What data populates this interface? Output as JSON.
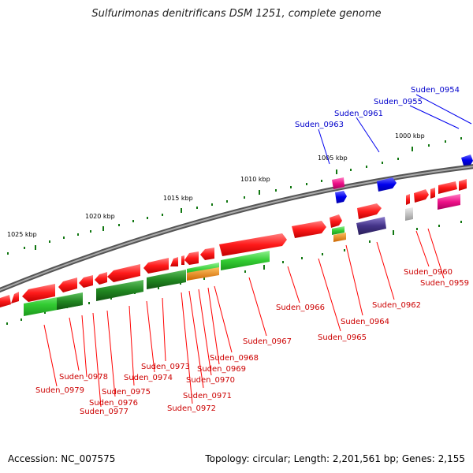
{
  "title": "Sulfurimonas denitrificans DSM 1251, complete genome",
  "footer": {
    "accession": "Accession: NC_007575",
    "summary": "Topology: circular; Length: 2,201,561 bp; Genes: 2,155"
  },
  "colors": {
    "forward_gene": "#ff1a1a",
    "reverse_gene": "#ff1a1a",
    "highlight_gene": "#0000ee",
    "rna_gene": "#ee1188",
    "pseudo_gene": "#aaaaaa",
    "cog_green": "#33cc33",
    "cog_dark_green": "#228822",
    "cog_orange": "#ee8800",
    "cog_purple": "#443388",
    "tick": "#117711",
    "backbone": "#777777"
  },
  "kbp_ticks": [
    "1000 kbp",
    "1005 kbp",
    "1010 kbp",
    "1015 kbp",
    "1020 kbp",
    "1025 kbp"
  ],
  "blue_labels": [
    "Suden_0954",
    "Suden_0955",
    "Suden_0961",
    "Suden_0963"
  ],
  "red_labels": [
    "Suden_0960",
    "Suden_0959",
    "Suden_0962",
    "Suden_0964",
    "Suden_0965",
    "Suden_0966",
    "Suden_0967",
    "Suden_0968",
    "Suden_0969",
    "Suden_0970",
    "Suden_0971",
    "Suden_0972",
    "Suden_0973",
    "Suden_0974",
    "Suden_0975",
    "Suden_0976",
    "Suden_0977",
    "Suden_0978",
    "Suden_0979"
  ]
}
